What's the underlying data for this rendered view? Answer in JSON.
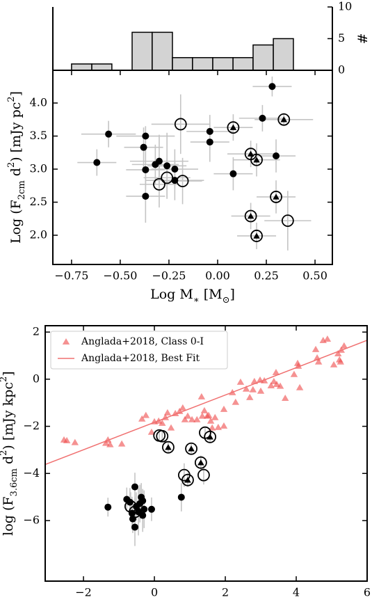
{
  "chart_data": [
    {
      "type": "histogram",
      "bins": [
        -0.75,
        -0.646,
        -0.543,
        -0.439,
        -0.336,
        -0.232,
        -0.129,
        -0.025,
        0.079,
        0.182,
        0.286,
        0.389
      ],
      "counts": [
        1,
        1,
        0,
        6,
        6,
        2,
        2,
        2,
        2,
        4,
        5
      ],
      "color": "#d3d3d3",
      "xlim": [
        -0.846,
        0.589
      ],
      "ylim": [
        0,
        10
      ],
      "yticks": [
        0,
        5,
        10
      ],
      "ylabel": "#",
      "yaxis": "right"
    },
    {
      "type": "scatter",
      "xlim": [
        -0.846,
        0.589
      ],
      "ylim": [
        1.558,
        4.495
      ],
      "ecolor": "#c4c4c4",
      "xticks": [
        {
          "value": -0.75,
          "label": "−0.75"
        },
        {
          "value": -0.5,
          "label": "−0.50"
        },
        {
          "value": -0.25,
          "label": "−0.25"
        },
        {
          "value": 0,
          "label": "0.00"
        },
        {
          "value": 0.25,
          "label": "0.25"
        },
        {
          "value": 0.5,
          "label": "0.50"
        }
      ],
      "yticks": [
        {
          "value": 2,
          "label": "2.0"
        },
        2.5,
        {
          "value": 3,
          "label": "3.0"
        },
        3.5,
        {
          "value": 4,
          "label": "4.0"
        }
      ],
      "xlabel": [
        "Log M",
        "∗",
        " [M",
        "⊙",
        "]"
      ],
      "ylabel": [
        "Log (F",
        "2cm",
        " d",
        "2",
        ") [mJy pc",
        "2",
        "]"
      ],
      "series": [
        {
          "marker": "filled-circle",
          "color": "#000000",
          "x": [
            -0.62,
            -0.56,
            -0.38,
            -0.37,
            -0.37,
            -0.37,
            -0.32,
            -0.3,
            -0.26,
            -0.22,
            -0.22,
            -0.04,
            -0.04,
            0.08,
            0.28,
            0.23,
            0.3
          ],
          "y": [
            3.1,
            3.53,
            3.33,
            3.5,
            2.99,
            2.59,
            3.07,
            3.12,
            3.05,
            3.0,
            2.83,
            3.57,
            3.41,
            2.93,
            4.25,
            3.77,
            3.2
          ],
          "xerr": [
            0.1,
            0.14,
            0.1,
            0.15,
            0.1,
            0.1,
            0.12,
            0.15,
            0.1,
            0.12,
            0.15,
            0.12,
            0.1,
            0.1,
            0.1,
            0.12,
            0.1
          ],
          "yerr": [
            0.2,
            0.2,
            0.3,
            0.15,
            0.3,
            0.4,
            0.3,
            0.4,
            0.5,
            0.3,
            0.3,
            0.25,
            0.3,
            0.25,
            0.15,
            0.2,
            0.25
          ]
        },
        {
          "marker": "open-circle",
          "color": "#000000",
          "x": [
            -0.19,
            -0.3,
            -0.26,
            -0.18,
            0.36
          ],
          "y": [
            3.68,
            2.77,
            2.87,
            2.82,
            2.22
          ],
          "xerr": [
            0.15,
            0.1,
            0.12,
            0.1,
            0.12
          ],
          "yerr": [
            0.45,
            0.35,
            0.3,
            0.35,
            0.45
          ]
        },
        {
          "marker": "circled-triangle",
          "color": "#000000",
          "x": [
            0.08,
            0.17,
            0.2,
            0.3,
            0.17,
            0.2,
            0.34
          ],
          "y": [
            3.63,
            3.23,
            3.14,
            2.58,
            2.29,
            1.99,
            3.75
          ],
          "xerr": [
            0.1,
            0.12,
            0.12,
            0.1,
            0.1,
            0.1,
            0.15
          ],
          "yerr": [
            0.2,
            0.2,
            0.25,
            0.25,
            0.2,
            0.2,
            0.1
          ]
        }
      ]
    },
    {
      "type": "scatter",
      "xlim": [
        -3.08,
        6
      ],
      "ylim": [
        -8.57,
        2.27
      ],
      "ecolor": "#c4c4c4",
      "legend": "upper left",
      "xticks": [
        {
          "value": -2,
          "label": "−2"
        },
        0,
        2,
        4,
        6
      ],
      "yticks": [
        {
          "value": -6,
          "label": "−6"
        },
        {
          "value": -4,
          "label": "−4"
        },
        {
          "value": -2,
          "label": "−2"
        },
        0,
        2
      ],
      "xlabel": [
        "log L",
        "∗",
        " [L",
        "⊙",
        "]"
      ],
      "ylabel": [
        "log (F",
        "3.6cm",
        " d",
        "2",
        ") [mJy kpc",
        "2",
        "]"
      ],
      "series": [
        {
          "name": "Anglada+2018, Class 0-I",
          "marker": "triangle",
          "color": "#ef4a4a",
          "x": [
            -2.55,
            -2.47,
            -2.24,
            -1.37,
            -1.31,
            -1.25,
            -0.92,
            -0.35,
            -0.24,
            -0.08,
            0,
            0.12,
            0.22,
            0.31,
            0.37,
            0.47,
            0.59,
            0.71,
            0.8,
            0.86,
            0.94,
            1.06,
            1.2,
            1.33,
            1.35,
            1.41,
            1.49,
            1.53,
            1.59,
            1.63,
            1.71,
            1.8,
            1.96,
            1.96,
            2.2,
            2.29,
            2.43,
            2.59,
            2.69,
            2.78,
            2.82,
            2.98,
            3.0,
            3.1,
            3.29,
            3.37,
            3.43,
            3.45,
            3.55,
            3.69,
            3.94,
            4.04,
            4.06,
            4.1,
            4.55,
            4.59,
            4.63,
            4.76,
            4.88,
            5.06,
            5.18,
            5.22,
            5.25,
            5.27,
            5.35
          ],
          "y": [
            -2.57,
            -2.6,
            -2.68,
            -2.71,
            -2.57,
            -2.77,
            -2.74,
            -1.68,
            -1.53,
            -2.24,
            -1.8,
            -1.77,
            -1.86,
            -1.62,
            -1.42,
            -2.06,
            -1.45,
            -1.36,
            -1.21,
            -1.71,
            -1.56,
            -1.71,
            -1.71,
            -0.74,
            -1.56,
            -1.33,
            -1.56,
            -1.53,
            -1.77,
            -2.06,
            -1.62,
            -2.04,
            -1.98,
            -1.27,
            -0.56,
            -0.97,
            -0.12,
            -0.41,
            -0.77,
            -0.44,
            -0.09,
            -0.03,
            -0.5,
            -0.06,
            -0.27,
            -0.09,
            0.29,
            -0.21,
            -0.29,
            -0.8,
            0.21,
            0.68,
            0.56,
            -0.35,
            1.27,
            0.91,
            0.74,
            1.65,
            1.71,
            0.62,
            1.09,
            0.83,
            0.74,
            1.24,
            1.42
          ]
        },
        {
          "name": "Anglada+2018, Best Fit",
          "type": "line",
          "color": "#f07070",
          "x": [
            -3.08,
            6
          ],
          "y": [
            -3.62,
            1.65
          ]
        },
        {
          "marker": "filled-circle",
          "color": "#000000",
          "x": [
            -1.31,
            -0.78,
            -0.69,
            -0.63,
            -0.61,
            -0.55,
            -0.51,
            -0.41,
            -0.37,
            -0.33,
            -0.33,
            -0.29,
            -0.08,
            -0.55,
            0.76,
            -0.45
          ],
          "y": [
            -5.43,
            -5.1,
            -5.22,
            -5.69,
            -5.93,
            -6.28,
            -5.4,
            -5.28,
            -5.01,
            -5.16,
            -5.78,
            -5.52,
            -5.52,
            -4.57,
            -5.01,
            -5.63
          ],
          "yerr": [
            0.4,
            0.5,
            0.6,
            0.7,
            0.6,
            0.8,
            0.6,
            0.8,
            0.6,
            0.5,
            0.7,
            0.8,
            0.5,
            0.6,
            0.6,
            1.0
          ]
        },
        {
          "marker": "open-circle",
          "color": "#000000",
          "x": [
            -0.67,
            -0.55,
            0.14,
            0.22,
            0.84,
            1.39,
            1.43
          ],
          "y": [
            -5.4,
            -5.63,
            -2.39,
            -2.42,
            -4.07,
            -4.07,
            -2.27
          ],
          "yerr": [
            0.6,
            0.6,
            0.2,
            0.2,
            0.5,
            0.4,
            0.2
          ]
        },
        {
          "marker": "circled-triangle",
          "color": "#000000",
          "x": [
            0.39,
            1.04,
            1.31,
            0.94,
            1.57
          ],
          "y": [
            -2.89,
            -2.95,
            -3.54,
            -4.28,
            -2.45
          ],
          "yerr": [
            0.2,
            0.2,
            0.3,
            0.3,
            0.2
          ]
        }
      ]
    }
  ]
}
